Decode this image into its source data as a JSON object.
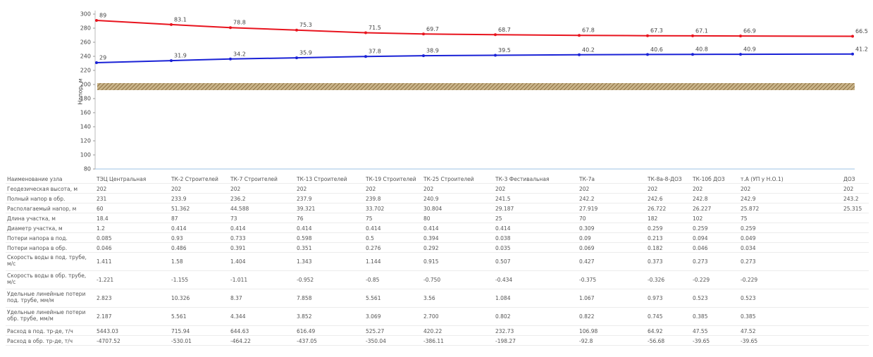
{
  "chart_data": {
    "type": "line",
    "y_label": "Напор, м",
    "ylim": [
      80,
      300
    ],
    "yticks": [
      80,
      100,
      120,
      140,
      160,
      180,
      200,
      220,
      240,
      260,
      280,
      300
    ],
    "series": [
      {
        "color": "#e8141e",
        "values": [
          291,
          285.1,
          280.8,
          277.3,
          273.5,
          271.7,
          270.7,
          269.8,
          269.3,
          269.1,
          268.9,
          268.5
        ],
        "point_labels": [
          "89",
          "83.1",
          "78.8",
          "75.3",
          "71.5",
          "69.7",
          "68.7",
          "67.8",
          "67.3",
          "67.1",
          "66.9",
          "66.5"
        ]
      },
      {
        "color": "#1a22d6",
        "values": [
          231,
          233.9,
          236.2,
          237.9,
          239.8,
          240.9,
          241.5,
          242.2,
          242.6,
          242.8,
          242.9,
          243.2
        ],
        "point_labels": [
          "29",
          "31.9",
          "34.2",
          "35.9",
          "37.8",
          "38.9",
          "39.5",
          "40.2",
          "40.6",
          "40.8",
          "40.9",
          "41.2"
        ]
      }
    ]
  },
  "table": {
    "rows": [
      {
        "label": "Наименование узла",
        "cells": [
          "ТЭЦ Центральная",
          "ТК-2 Строителей",
          "ТК-7 Строителей",
          "ТК-13 Строителей",
          "ТК-19 Строителей",
          "ТК-25 Строителей",
          "ТК-3 Фестивальная",
          "ТК-7а",
          "ТК-8а-8-ДОЗ",
          "ТК-10б ДОЗ",
          "т.А (УП у Н.О.1)",
          "ДОЗ"
        ]
      },
      {
        "label": "Геодезическая высота, м",
        "cells": [
          "202",
          "202",
          "202",
          "202",
          "202",
          "202",
          "202",
          "202",
          "202",
          "202",
          "202",
          "202"
        ]
      },
      {
        "label": "Полный напор в обр.",
        "cells": [
          "231",
          "233.9",
          "236.2",
          "237.9",
          "239.8",
          "240.9",
          "241.5",
          "242.2",
          "242.6",
          "242.8",
          "242.9",
          "243.2"
        ]
      },
      {
        "label": "Располагаемый напор, м",
        "cells": [
          "60",
          "51.362",
          "44.588",
          "39.321",
          "33.702",
          "30.804",
          "29.187",
          "27.919",
          "26.722",
          "26.227",
          "25.872",
          "25.315"
        ]
      },
      {
        "label": "Длина участка, м",
        "cells": [
          "18.4",
          "87",
          "73",
          "76",
          "75",
          "80",
          "25",
          "70",
          "182",
          "102",
          "75"
        ]
      },
      {
        "label": "Диаметр участка, м",
        "cells": [
          "1.2",
          "0.414",
          "0.414",
          "0.414",
          "0.414",
          "0.414",
          "0.414",
          "0.309",
          "0.259",
          "0.259",
          "0.259"
        ]
      },
      {
        "label": "Потери напора в под.",
        "cells": [
          "0.085",
          "0.93",
          "0.733",
          "0.598",
          "0.5",
          "0.394",
          "0.038",
          "0.09",
          "0.213",
          "0.094",
          "0.049"
        ]
      },
      {
        "label": "Потери напора в обр.",
        "cells": [
          "0.046",
          "0.486",
          "0.391",
          "0.351",
          "0.276",
          "0.292",
          "0.035",
          "0.069",
          "0.182",
          "0.046",
          "0.034"
        ]
      },
      {
        "label": "Скорость воды в под. трубе, м/с",
        "cells": [
          "1.411",
          "1.58",
          "1.404",
          "1.343",
          "1.144",
          "0.915",
          "0.507",
          "0.427",
          "0.373",
          "0.273",
          "0.273"
        ]
      },
      {
        "label": "Скорость воды в обр. трубе, м/с",
        "cells": [
          "-1.221",
          "-1.155",
          "-1.011",
          "-0.952",
          "-0.85",
          "-0.750",
          "-0.434",
          "-0.375",
          "-0.326",
          "-0.229",
          "-0.229"
        ]
      },
      {
        "label": "Удельные линейные потери под. трубе, мм/м",
        "cells": [
          "2.823",
          "10.326",
          "8.37",
          "7.858",
          "5.561",
          "3.56",
          "1.084",
          "1.067",
          "0.973",
          "0.523",
          "0.523"
        ]
      },
      {
        "label": "Удельные линейные потери обр. трубе, мм/м",
        "cells": [
          "2.187",
          "5.561",
          "4.344",
          "3.852",
          "3.069",
          "2.700",
          "0.802",
          "0.822",
          "0.745",
          "0.385",
          "0.385"
        ]
      },
      {
        "label": "Расход в под. тр-де, т/ч",
        "cells": [
          "5443.03",
          "715.94",
          "644.63",
          "616.49",
          "525.27",
          "420.22",
          "232.73",
          "106.98",
          "64.92",
          "47.55",
          "47.52"
        ]
      },
      {
        "label": "Расход в обр. тр-де, т/ч",
        "cells": [
          "-4707.52",
          "-530.01",
          "-464.22",
          "-437.05",
          "-350.04",
          "-386.11",
          "-198.27",
          "-92.8",
          "-56.68",
          "-39.65",
          "-39.65"
        ]
      }
    ]
  }
}
